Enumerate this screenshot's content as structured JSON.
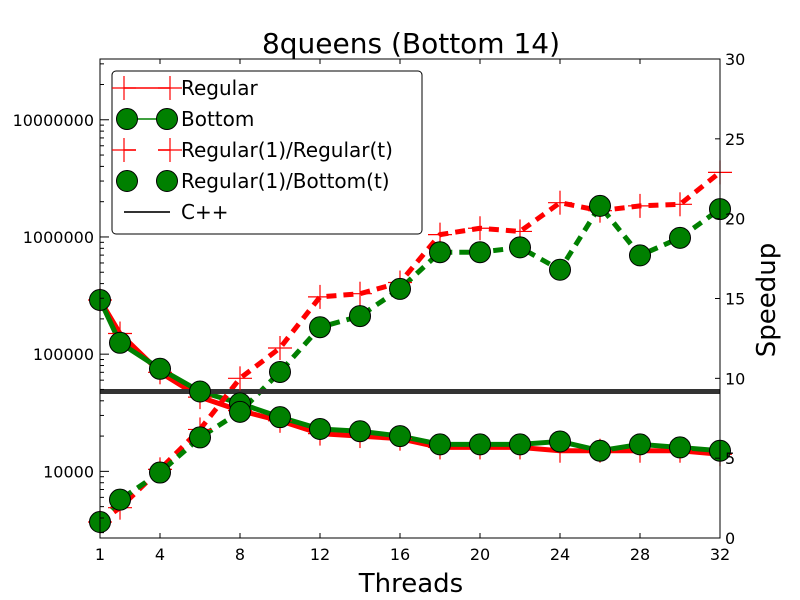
{
  "chart_data": {
    "type": "line",
    "title": "8queens (Bottom 14)",
    "xlabel": "Threads",
    "ylabel_left": "",
    "ylabel_right": "Speedup",
    "x_ticks": [
      1,
      4,
      8,
      12,
      16,
      20,
      24,
      28,
      32
    ],
    "x_tick_labels": [
      "1",
      "4",
      "8",
      "12",
      "16",
      "20",
      "24",
      "28",
      "32"
    ],
    "xlim": [
      1,
      32
    ],
    "left_axis": {
      "scale": "log",
      "ylim": [
        2700,
        33000000
      ],
      "ticks": [
        10000,
        100000,
        1000000,
        10000000
      ],
      "tick_labels": [
        "10000",
        "100000",
        "1000000",
        "10000000"
      ]
    },
    "right_axis": {
      "scale": "linear",
      "ylim": [
        0,
        30
      ],
      "ticks": [
        0,
        5,
        10,
        15,
        20,
        25,
        30
      ],
      "tick_labels": [
        "0",
        "5",
        "10",
        "15",
        "20",
        "25",
        "30"
      ]
    },
    "grid": false,
    "legend_placement": "top-left",
    "series": [
      {
        "name": "Regular",
        "axis": "left",
        "color": "#ff0000",
        "style": "solid",
        "marker": "plus",
        "x": [
          1,
          2,
          4,
          6,
          8,
          10,
          12,
          14,
          16,
          18,
          20,
          22,
          24,
          26,
          28,
          30,
          32
        ],
        "values": [
          290000,
          150000,
          70000,
          43000,
          33000,
          27000,
          21000,
          20000,
          19000,
          16000,
          16000,
          16000,
          15000,
          15000,
          15000,
          15000,
          14000
        ]
      },
      {
        "name": "Bottom",
        "axis": "left",
        "color": "#008000",
        "style": "solid",
        "marker": "circle",
        "x": [
          1,
          2,
          4,
          6,
          8,
          10,
          12,
          14,
          16,
          18,
          20,
          22,
          24,
          26,
          28,
          30,
          32
        ],
        "values": [
          290000,
          125000,
          75000,
          48000,
          38000,
          29000,
          23000,
          22000,
          20000,
          17000,
          17000,
          17000,
          18000,
          15000,
          17000,
          16000,
          15000
        ]
      },
      {
        "name": "Regular(1)/Regular(t)",
        "axis": "right",
        "color": "#ff0000",
        "style": "dashed",
        "marker": "plus",
        "x": [
          1,
          2,
          4,
          6,
          8,
          10,
          12,
          14,
          16,
          18,
          20,
          22,
          24,
          26,
          28,
          30,
          32
        ],
        "values": [
          1,
          1.9,
          4.3,
          6.8,
          10.0,
          11.9,
          15.1,
          15.3,
          16.0,
          19.0,
          19.4,
          19.2,
          21.0,
          20.5,
          20.8,
          20.9,
          22.9
        ]
      },
      {
        "name": "Regular(1)/Bottom(t)",
        "axis": "right",
        "color": "#008000",
        "style": "dashed",
        "marker": "circle",
        "x": [
          1,
          2,
          4,
          6,
          8,
          10,
          12,
          14,
          16,
          18,
          20,
          22,
          24,
          26,
          28,
          30,
          32
        ],
        "values": [
          1,
          2.4,
          4.1,
          6.3,
          7.9,
          10.4,
          13.2,
          13.9,
          15.6,
          17.9,
          17.9,
          18.2,
          16.8,
          20.8,
          17.7,
          18.8,
          20.6
        ]
      },
      {
        "name": "C++",
        "axis": "left",
        "color": "#333333",
        "style": "solid",
        "marker": "none",
        "x": [
          1,
          32
        ],
        "values": [
          48000,
          48000
        ]
      }
    ]
  }
}
